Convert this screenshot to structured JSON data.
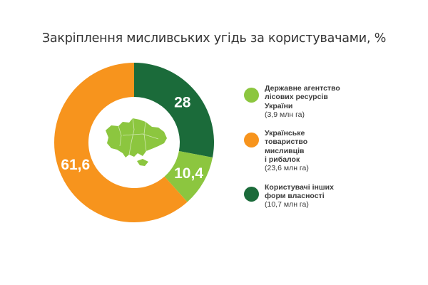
{
  "chart_data": {
    "type": "pie",
    "title": "Закріплення мисливських угідь за користувачами, %",
    "categories": [
      "Державне агентство лісових ресурсів України",
      "Українське товариство мисливців і рибалок",
      "Користувачі інших форм власності"
    ],
    "values": [
      10.4,
      61.6,
      28
    ],
    "value_labels": [
      "10,4",
      "61,6",
      "28"
    ],
    "colors": [
      "#8CC63F",
      "#F7941D",
      "#1B6B3A"
    ],
    "legend_placement": "right",
    "legend": [
      {
        "lines": [
          "Державне агентство",
          "лісових ресурсів",
          "України"
        ],
        "sub": "(3,9 млн га)",
        "color": "#8CC63F"
      },
      {
        "lines": [
          "Українське",
          "товариство",
          "мисливців",
          "і рибалок"
        ],
        "sub": "(23,6 млн га)",
        "color": "#F7941D"
      },
      {
        "lines": [
          "Користувачі інших",
          "форм власності"
        ],
        "sub": "(10,7 млн га)",
        "color": "#1B6B3A"
      }
    ],
    "center_icon": "ukraine-map-icon"
  }
}
